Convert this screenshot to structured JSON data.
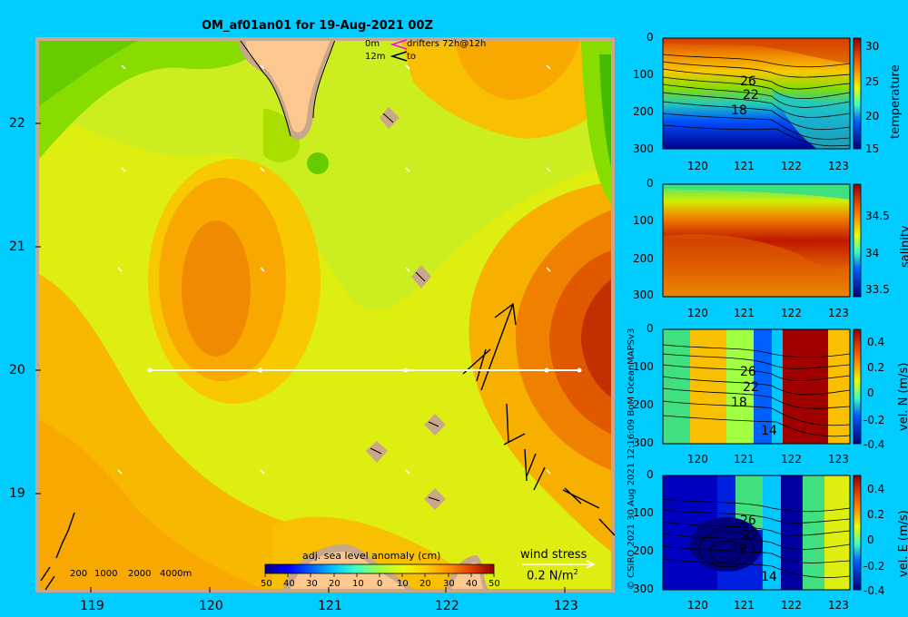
{
  "main_map": {
    "title": "OM_af01an01 for 19-Aug-2021 00Z",
    "legend_line1_depth": "0m",
    "legend_line1_text": "drifters 72h@12h",
    "legend_line2_depth": "12m",
    "legend_line2_text": "to",
    "lon_ticks": [
      "119",
      "120",
      "121",
      "122",
      "123"
    ],
    "lat_ticks": [
      "22",
      "21",
      "20",
      "19"
    ],
    "bathy_legend": [
      "200",
      "1000",
      "2000",
      "4000m"
    ],
    "colorbar_label": "adj. sea level anomaly (cm)",
    "colorbar_ticks": [
      "50",
      "40",
      "30",
      "20",
      "10",
      "0",
      "10",
      "20",
      "30",
      "40",
      "50"
    ],
    "wind_label": "wind stress",
    "wind_scale": "0.2 N/m",
    "wind_scale_sup": "2",
    "section_latitude": 20,
    "section_lon_range": [
      119.5,
      123.2
    ],
    "colors": {
      "land": "#fcc890",
      "coast_shadow": "#c8a888",
      "section_line": "#ffffff"
    }
  },
  "credit": "© CSIRO 2021   30 Aug 2021 12:16:09 BoM OceanMAPSv3",
  "panels": [
    {
      "name": "temperature",
      "label": "temperature",
      "y_ticks": [
        "0",
        "100",
        "200",
        "300"
      ],
      "x_ticks": [
        "120",
        "121",
        "122",
        "123"
      ],
      "cbar_ticks": [
        "30",
        "25",
        "20",
        "15"
      ],
      "contour_labels": [
        "26",
        "22",
        "18"
      ]
    },
    {
      "name": "salinity",
      "label": "salinity",
      "y_ticks": [
        "0",
        "100",
        "200",
        "300"
      ],
      "x_ticks": [
        "120",
        "121",
        "122",
        "123"
      ],
      "cbar_ticks": [
        "34.5",
        "34",
        "33.5"
      ],
      "contour_labels": []
    },
    {
      "name": "vel-n",
      "label": "vel. N (m/s)",
      "y_ticks": [
        "0",
        "100",
        "200",
        "300"
      ],
      "x_ticks": [
        "120",
        "121",
        "122",
        "123"
      ],
      "cbar_ticks": [
        "0.4",
        "0.2",
        "0",
        "-0.2",
        "-0.4"
      ],
      "contour_labels": [
        "26",
        "22",
        "18",
        "14"
      ]
    },
    {
      "name": "vel-e",
      "label": "vel. E (m/s)",
      "y_ticks": [
        "0",
        "100",
        "200",
        "300"
      ],
      "x_ticks": [
        "120",
        "121",
        "122",
        "123"
      ],
      "cbar_ticks": [
        "0.4",
        "0.2",
        "0",
        "-0.2",
        "-0.4"
      ],
      "contour_labels": [
        "26",
        "22",
        "18",
        "14"
      ]
    }
  ]
}
